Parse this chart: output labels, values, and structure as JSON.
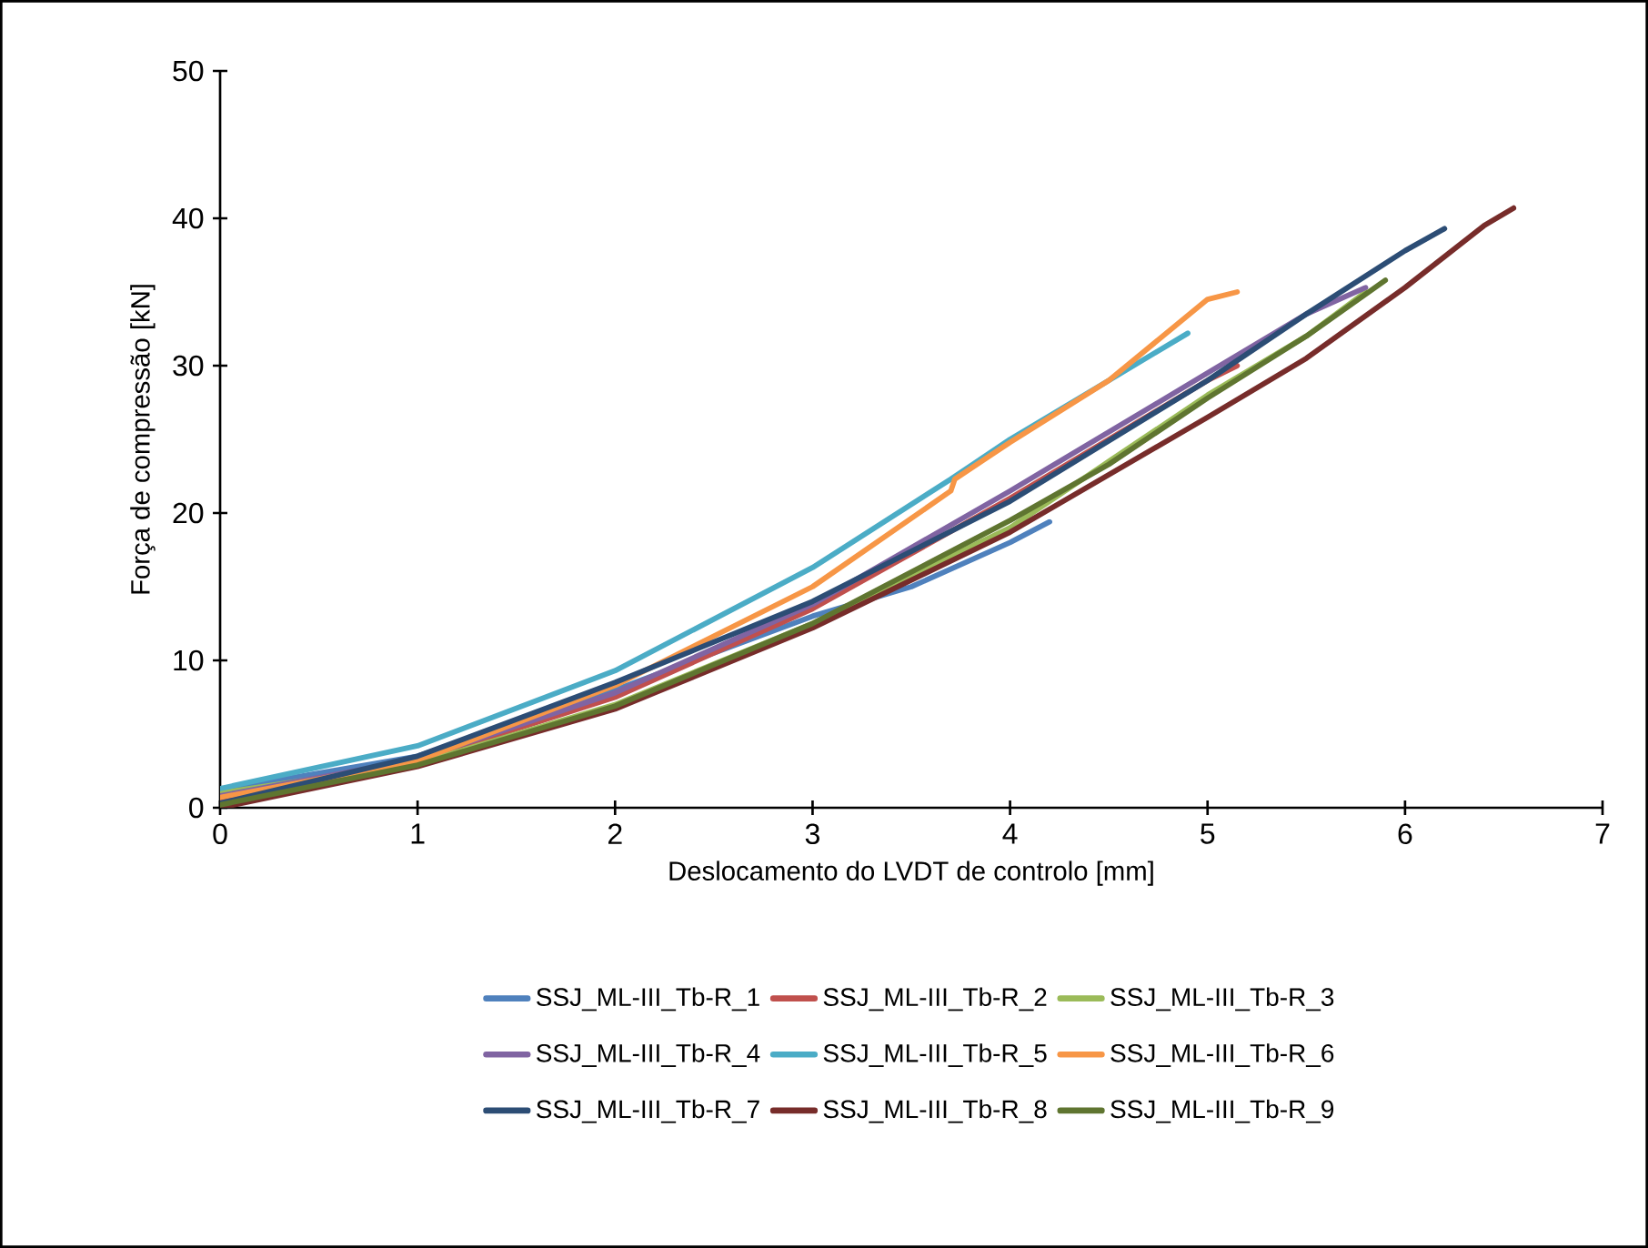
{
  "chart_data": {
    "type": "line",
    "xlabel": "Deslocamento do LVDT de controlo [mm]",
    "ylabel": "Força de compressão [kN]",
    "xlim": [
      0,
      7
    ],
    "ylim": [
      0,
      50
    ],
    "xticks": [
      0,
      1,
      2,
      3,
      4,
      5,
      6,
      7
    ],
    "yticks": [
      0,
      10,
      20,
      30,
      40,
      50
    ],
    "legend": "bottom",
    "series": [
      {
        "name": "SSJ_ML-III_Tb-R_1",
        "color": "#4f81bd",
        "x": [
          0,
          1,
          2,
          3,
          3.5,
          4,
          4.2
        ],
        "values": [
          1.2,
          3.5,
          8,
          13,
          15,
          18,
          19.4
        ]
      },
      {
        "name": "SSJ_ML-III_Tb-R_2",
        "color": "#c0504d",
        "x": [
          0,
          1,
          2,
          3,
          4,
          4.5,
          5,
          5.15
        ],
        "values": [
          0.5,
          3.2,
          7.5,
          13.5,
          21,
          25,
          29,
          30
        ]
      },
      {
        "name": "SSJ_ML-III_Tb-R_3",
        "color": "#9bbb59",
        "x": [
          0,
          1,
          2,
          3,
          4,
          4.5,
          5,
          5.5,
          5.8
        ],
        "values": [
          1,
          3,
          7,
          12.5,
          19,
          23.5,
          28,
          32,
          35
        ]
      },
      {
        "name": "SSJ_ML-III_Tb-R_4",
        "color": "#8064a2",
        "x": [
          0,
          1,
          2,
          3,
          4,
          4.5,
          5,
          5.5,
          5.8
        ],
        "values": [
          0.8,
          3.3,
          7.8,
          13.8,
          21.5,
          25.5,
          29.5,
          33.5,
          35.3
        ]
      },
      {
        "name": "SSJ_ML-III_Tb-R_5",
        "color": "#4bacc6",
        "x": [
          0,
          1,
          2,
          3,
          3.7,
          4,
          4.5,
          4.9
        ],
        "values": [
          1.3,
          4.2,
          9.3,
          16.3,
          22.3,
          25,
          29,
          32.2
        ]
      },
      {
        "name": "SSJ_ML-III_Tb-R_6",
        "color": "#f79646",
        "x": [
          0,
          1,
          2,
          3,
          3.7,
          3.72,
          4,
          4.5,
          5,
          5.15
        ],
        "values": [
          0.7,
          3.2,
          8.3,
          15,
          21.5,
          22.3,
          24.8,
          29,
          34.5,
          35
        ]
      },
      {
        "name": "SSJ_ML-III_Tb-R_7",
        "color": "#2c4d75",
        "x": [
          0,
          1,
          2,
          3,
          4,
          5,
          5.5,
          6,
          6.2
        ],
        "values": [
          0.3,
          3.5,
          8.5,
          14,
          20.8,
          29,
          33.5,
          37.8,
          39.3
        ]
      },
      {
        "name": "SSJ_ML-III_Tb-R_8",
        "color": "#772c2a",
        "x": [
          0,
          1,
          2,
          3,
          4,
          5,
          5.5,
          6,
          6.4,
          6.55
        ],
        "values": [
          0,
          2.8,
          6.7,
          12.2,
          18.7,
          26.5,
          30.5,
          35.3,
          39.5,
          40.7
        ]
      },
      {
        "name": "SSJ_ML-III_Tb-R_9",
        "color": "#5f7530",
        "x": [
          0,
          1,
          2,
          3,
          4,
          4.5,
          5,
          5.5,
          5.9
        ],
        "values": [
          0.2,
          2.9,
          6.9,
          12.5,
          19.5,
          23.3,
          27.8,
          32,
          35.8
        ]
      }
    ]
  }
}
